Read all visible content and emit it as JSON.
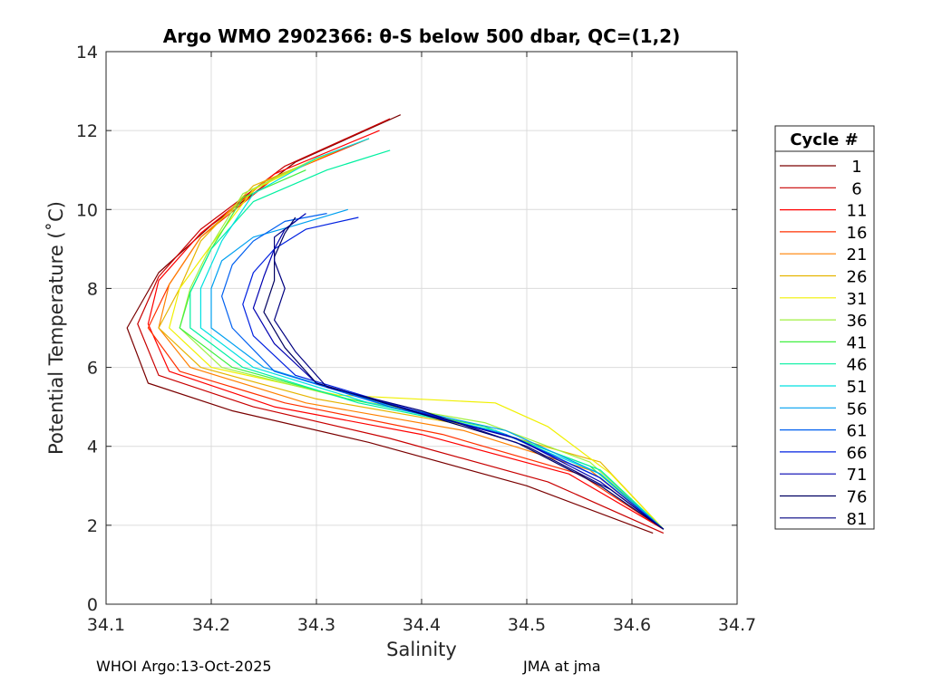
{
  "chart_data": {
    "type": "line",
    "title": "Argo WMO 2902366: θ-S below 500 dbar,  QC=(1,2)",
    "xlabel": "Salinity",
    "ylabel": "Potential Temperature (˚C)",
    "xlim": [
      34.1,
      34.7
    ],
    "ylim": [
      0,
      14
    ],
    "xticks": [
      "34.1",
      "34.2",
      "34.3",
      "34.4",
      "34.5",
      "34.6",
      "34.7"
    ],
    "yticks": [
      "0",
      "2",
      "4",
      "6",
      "8",
      "10",
      "12",
      "14"
    ],
    "grid": true,
    "legend": {
      "title": "Cycle #",
      "placement": "right",
      "entries": [
        {
          "label": "1",
          "color": "#7a0000"
        },
        {
          "label": "6",
          "color": "#c80000"
        },
        {
          "label": "11",
          "color": "#ff0000"
        },
        {
          "label": "16",
          "color": "#ff3000"
        },
        {
          "label": "21",
          "color": "#ff8000"
        },
        {
          "label": "26",
          "color": "#e6b400"
        },
        {
          "label": "31",
          "color": "#f0f000"
        },
        {
          "label": "36",
          "color": "#a0f040"
        },
        {
          "label": "41",
          "color": "#40f040"
        },
        {
          "label": "46",
          "color": "#00f0a0"
        },
        {
          "label": "51",
          "color": "#00e0e0"
        },
        {
          "label": "56",
          "color": "#00a0f0"
        },
        {
          "label": "61",
          "color": "#0060f0"
        },
        {
          "label": "66",
          "color": "#0020e0"
        },
        {
          "label": "71",
          "color": "#0000b0"
        },
        {
          "label": "76",
          "color": "#000060"
        },
        {
          "label": "81",
          "color": "#000080"
        }
      ]
    },
    "series": [
      {
        "name": "1",
        "color": "#7a0000",
        "x": [
          34.38,
          34.28,
          34.2,
          34.15,
          34.12,
          34.14,
          34.22,
          34.35,
          34.5,
          34.62
        ],
        "y": [
          12.4,
          11.2,
          9.6,
          8.4,
          7.0,
          5.6,
          4.9,
          4.1,
          3.0,
          1.8
        ]
      },
      {
        "name": "6",
        "color": "#c80000",
        "x": [
          34.37,
          34.27,
          34.19,
          34.15,
          34.13,
          34.15,
          34.24,
          34.37,
          34.52,
          34.63
        ],
        "y": [
          12.3,
          11.1,
          9.5,
          8.3,
          7.1,
          5.8,
          5.0,
          4.2,
          3.1,
          1.8
        ]
      },
      {
        "name": "11",
        "color": "#ff0000",
        "x": [
          34.36,
          34.26,
          34.19,
          34.15,
          34.14,
          34.16,
          34.26,
          34.4,
          34.54,
          34.63
        ],
        "y": [
          12.0,
          10.9,
          9.4,
          8.2,
          7.1,
          5.9,
          5.0,
          4.3,
          3.3,
          1.9
        ]
      },
      {
        "name": "16",
        "color": "#ff3000",
        "x": [
          34.35,
          34.26,
          34.19,
          34.16,
          34.14,
          34.17,
          34.27,
          34.42,
          34.55,
          34.63
        ],
        "y": [
          11.8,
          10.8,
          9.3,
          8.1,
          7.0,
          5.9,
          5.1,
          4.3,
          3.3,
          1.9
        ]
      },
      {
        "name": "21",
        "color": "#ff8000",
        "x": [
          34.33,
          34.25,
          34.19,
          34.16,
          34.15,
          34.18,
          34.29,
          34.44,
          34.56,
          34.63
        ],
        "y": [
          11.6,
          10.7,
          9.3,
          8.1,
          7.0,
          6.0,
          5.1,
          4.4,
          3.4,
          1.9
        ]
      },
      {
        "name": "26",
        "color": "#e6b400",
        "x": [
          34.32,
          34.24,
          34.19,
          34.17,
          34.15,
          34.19,
          34.3,
          34.45,
          34.57,
          34.63
        ],
        "y": [
          11.5,
          10.6,
          9.2,
          8.0,
          7.0,
          6.0,
          5.2,
          4.5,
          3.6,
          1.9
        ]
      },
      {
        "name": "31",
        "color": "#f0f000",
        "x": [
          34.31,
          34.24,
          34.2,
          34.17,
          34.16,
          34.2,
          34.32,
          34.47,
          34.52,
          34.58,
          34.63
        ],
        "y": [
          11.4,
          10.5,
          9.1,
          8.0,
          7.0,
          6.0,
          5.3,
          5.1,
          4.5,
          3.3,
          1.9
        ]
      },
      {
        "name": "36",
        "color": "#a0f040",
        "x": [
          34.3,
          34.23,
          34.2,
          34.18,
          34.17,
          34.21,
          34.33,
          34.46,
          34.56,
          34.63
        ],
        "y": [
          11.3,
          10.4,
          9.1,
          8.0,
          7.0,
          6.0,
          5.2,
          4.6,
          3.6,
          1.9
        ]
      },
      {
        "name": "41",
        "color": "#40f040",
        "x": [
          34.29,
          34.23,
          34.2,
          34.18,
          34.17,
          34.22,
          34.33,
          34.46,
          34.56,
          34.63
        ],
        "y": [
          11.0,
          10.3,
          9.0,
          7.9,
          7.0,
          6.0,
          5.2,
          4.5,
          3.5,
          1.9
        ]
      },
      {
        "name": "46",
        "color": "#00f0a0",
        "x": [
          34.37,
          34.31,
          34.24,
          34.2,
          34.18,
          34.18,
          34.23,
          34.34,
          34.47,
          34.57,
          34.63
        ],
        "y": [
          11.5,
          11.0,
          10.2,
          9.0,
          7.9,
          7.0,
          6.0,
          5.1,
          4.4,
          3.4,
          1.9
        ]
      },
      {
        "name": "51",
        "color": "#00e0e0",
        "x": [
          34.35,
          34.3,
          34.24,
          34.21,
          34.19,
          34.19,
          34.24,
          34.35,
          34.47,
          34.57,
          34.63
        ],
        "y": [
          11.8,
          11.3,
          10.4,
          9.2,
          8.0,
          7.0,
          6.0,
          5.1,
          4.4,
          3.3,
          1.9
        ]
      },
      {
        "name": "56",
        "color": "#00a0f0",
        "x": [
          34.33,
          34.28,
          34.24,
          34.21,
          34.2,
          34.2,
          34.25,
          34.36,
          34.48,
          34.57,
          34.63
        ],
        "y": [
          10.0,
          9.6,
          9.3,
          8.7,
          8.0,
          7.0,
          6.0,
          5.1,
          4.4,
          3.3,
          1.9
        ]
      },
      {
        "name": "61",
        "color": "#0060f0",
        "x": [
          34.31,
          34.27,
          34.24,
          34.22,
          34.21,
          34.22,
          34.26,
          34.37,
          34.48,
          34.57,
          34.63
        ],
        "y": [
          9.9,
          9.7,
          9.2,
          8.6,
          7.8,
          7.0,
          5.9,
          5.0,
          4.3,
          3.2,
          1.9
        ]
      },
      {
        "name": "66",
        "color": "#0020e0",
        "x": [
          34.34,
          34.29,
          34.26,
          34.24,
          34.23,
          34.24,
          34.28,
          34.38,
          34.49,
          34.57,
          34.63
        ],
        "y": [
          9.8,
          9.5,
          9.0,
          8.4,
          7.6,
          6.8,
          5.8,
          5.0,
          4.2,
          3.2,
          1.9
        ]
      },
      {
        "name": "71",
        "color": "#0000b0",
        "x": [
          34.29,
          34.27,
          34.26,
          34.25,
          34.24,
          34.26,
          34.3,
          34.39,
          34.49,
          34.57,
          34.63
        ],
        "y": [
          9.9,
          9.5,
          9.0,
          8.3,
          7.5,
          6.6,
          5.6,
          4.9,
          4.2,
          3.1,
          1.9
        ]
      },
      {
        "name": "76",
        "color": "#000060",
        "x": [
          34.28,
          34.27,
          34.26,
          34.26,
          34.25,
          34.27,
          34.3,
          34.39,
          34.49,
          34.57,
          34.63
        ],
        "y": [
          9.8,
          9.4,
          8.8,
          8.2,
          7.4,
          6.5,
          5.6,
          4.9,
          4.1,
          3.0,
          1.9
        ]
      },
      {
        "name": "81",
        "color": "#000080",
        "x": [
          34.28,
          34.26,
          34.26,
          34.27,
          34.26,
          34.28,
          34.31,
          34.4,
          34.5,
          34.58,
          34.63
        ],
        "y": [
          9.7,
          9.3,
          8.7,
          8.0,
          7.2,
          6.4,
          5.5,
          4.9,
          4.0,
          2.9,
          1.9
        ]
      }
    ]
  },
  "footer": {
    "left": "WHOI Argo:13-Oct-2025",
    "right": "JMA at jma"
  }
}
